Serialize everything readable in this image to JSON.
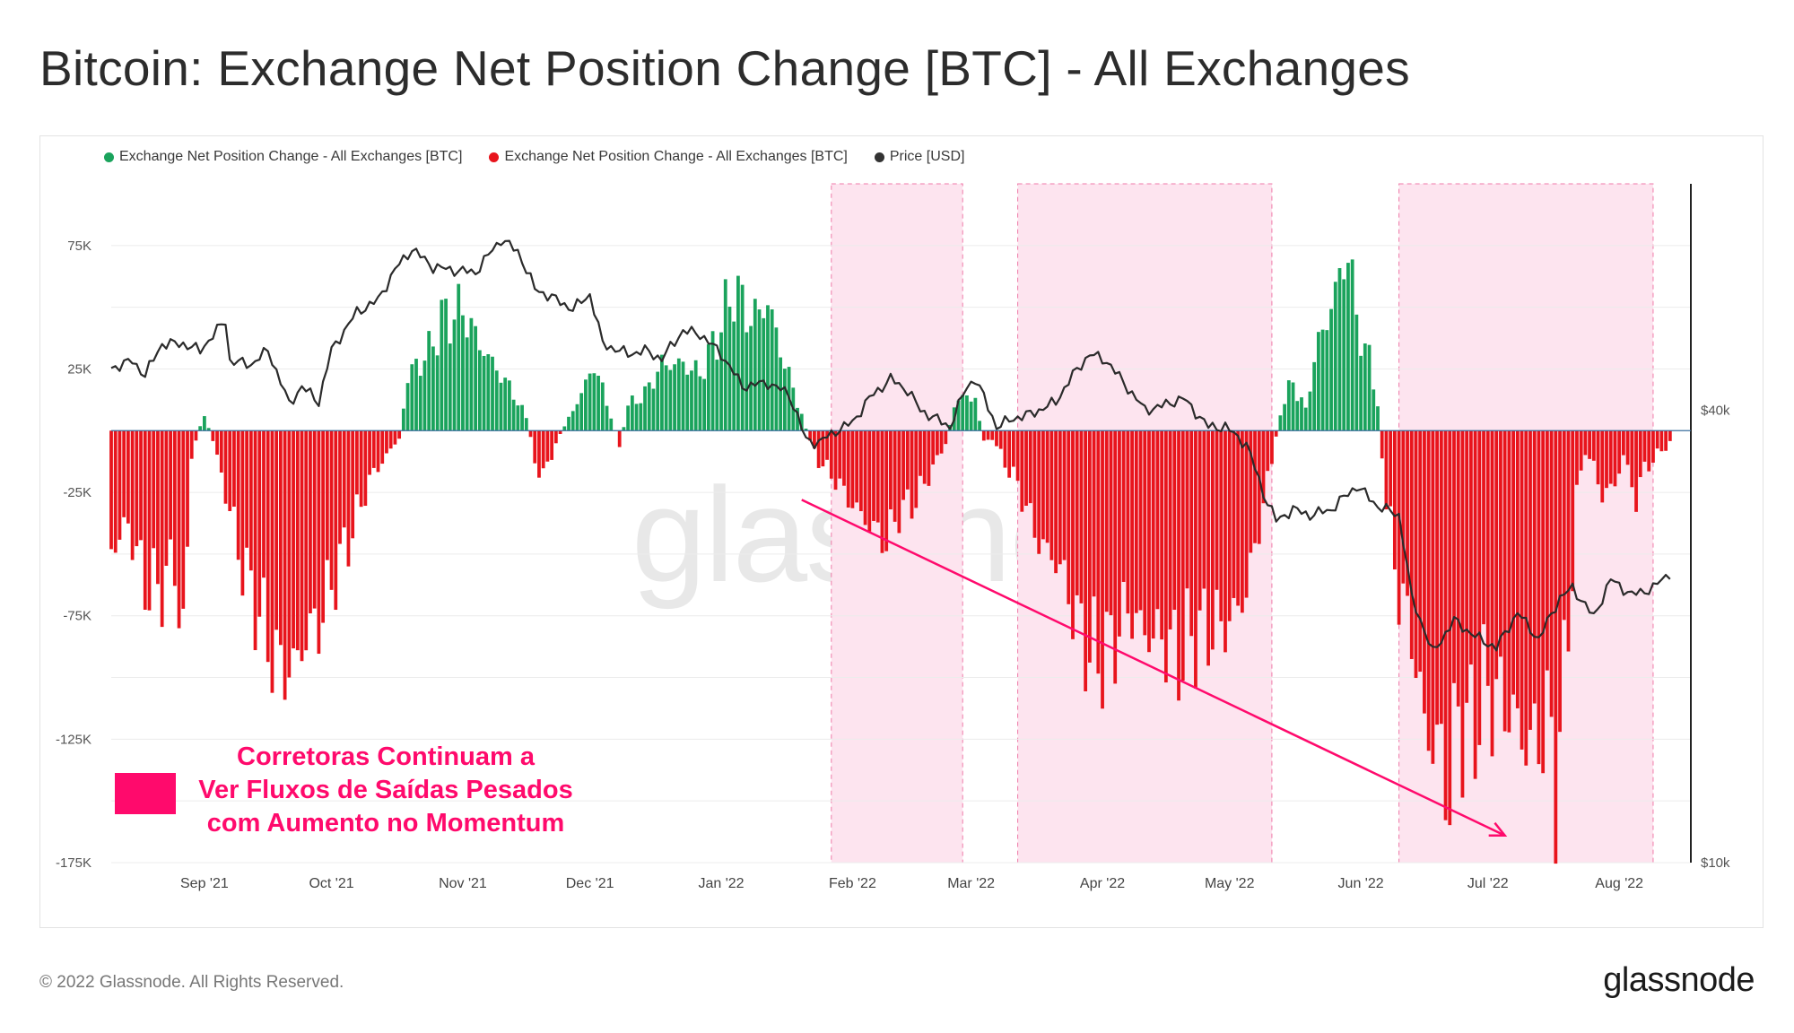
{
  "page": {
    "title": "Bitcoin: Exchange Net Position Change [BTC] - All Exchanges",
    "copyright": "© 2022 Glassnode. All Rights Reserved.",
    "logo": "glassnode",
    "watermark": "glassnode"
  },
  "annotation": {
    "lines": [
      "Corretoras Continuam a",
      "Ver Fluxos de Saídas Pesados",
      "com Aumento no Momentum"
    ],
    "color": "#ff0a6c"
  },
  "chart_data": {
    "type": "bar",
    "title": "Bitcoin: Exchange Net Position Change [BTC] - All Exchanges",
    "legend": [
      {
        "label": "Exchange Net Position Change - All Exchanges [BTC]",
        "color": "#1aa35c"
      },
      {
        "label": "Exchange Net Position Change - All Exchanges [BTC]",
        "color": "#e8141c"
      },
      {
        "label": "Price [USD]",
        "color": "#333333"
      }
    ],
    "legend_position": "top-left",
    "x_range": [
      "2021-08-10",
      "2022-08-16"
    ],
    "x_ticks": [
      {
        "date": "2021-09-01",
        "label": "Sep '21"
      },
      {
        "date": "2021-10-01",
        "label": "Oct '21"
      },
      {
        "date": "2021-11-01",
        "label": "Nov '21"
      },
      {
        "date": "2021-12-01",
        "label": "Dec '21"
      },
      {
        "date": "2022-01-01",
        "label": "Jan '22"
      },
      {
        "date": "2022-02-01",
        "label": "Feb '22"
      },
      {
        "date": "2022-03-01",
        "label": "Mar '22"
      },
      {
        "date": "2022-04-01",
        "label": "Apr '22"
      },
      {
        "date": "2022-05-01",
        "label": "May '22"
      },
      {
        "date": "2022-06-01",
        "label": "Jun '22"
      },
      {
        "date": "2022-07-01",
        "label": "Jul '22"
      },
      {
        "date": "2022-08-01",
        "label": "Aug '22"
      }
    ],
    "y_left": {
      "min": -175000,
      "max": 100000,
      "ticks": [
        {
          "value": 75000,
          "label": "75K"
        },
        {
          "value": 25000,
          "label": "25K"
        },
        {
          "value": -25000,
          "label": "-25K"
        },
        {
          "value": -75000,
          "label": "-75K"
        },
        {
          "value": -125000,
          "label": "-125K"
        },
        {
          "value": -175000,
          "label": "-175K"
        }
      ]
    },
    "y_right": {
      "scale": "log",
      "min": 10000,
      "max": 80000,
      "ticks": [
        {
          "value": 40000,
          "label": "$40k"
        },
        {
          "value": 10000,
          "label": "$10k"
        }
      ]
    },
    "grid": true,
    "shaded_periods": [
      {
        "start": "2022-01-27",
        "end": "2022-02-27"
      },
      {
        "start": "2022-03-12",
        "end": "2022-05-11"
      },
      {
        "start": "2022-06-10",
        "end": "2022-08-09"
      }
    ],
    "trend_arrow": {
      "from": {
        "date": "2022-01-20",
        "value": -28000
      },
      "to": {
        "date": "2022-07-05",
        "value": -164000
      }
    },
    "net_position_keypoints": [
      [
        "2021-08-10",
        -48000
      ],
      [
        "2021-08-14",
        -38000
      ],
      [
        "2021-08-18",
        -62000
      ],
      [
        "2021-08-21",
        -65000
      ],
      [
        "2021-08-25",
        -54000
      ],
      [
        "2021-08-27",
        -88000
      ],
      [
        "2021-08-29",
        -10000
      ],
      [
        "2021-08-31",
        2000
      ],
      [
        "2021-09-01",
        6000
      ],
      [
        "2021-09-03",
        -4000
      ],
      [
        "2021-09-06",
        -25000
      ],
      [
        "2021-09-10",
        -55000
      ],
      [
        "2021-09-14",
        -75000
      ],
      [
        "2021-09-18",
        -95000
      ],
      [
        "2021-09-22",
        -97000
      ],
      [
        "2021-09-25",
        -83000
      ],
      [
        "2021-09-28",
        -78000
      ],
      [
        "2021-10-02",
        -58000
      ],
      [
        "2021-10-06",
        -40000
      ],
      [
        "2021-10-10",
        -20000
      ],
      [
        "2021-10-14",
        -10000
      ],
      [
        "2021-10-17",
        -3000
      ],
      [
        "2021-10-19",
        22000
      ],
      [
        "2021-10-24",
        32000
      ],
      [
        "2021-10-27",
        45000
      ],
      [
        "2021-11-01",
        49000
      ],
      [
        "2021-11-05",
        35000
      ],
      [
        "2021-11-09",
        25000
      ],
      [
        "2021-11-13",
        15000
      ],
      [
        "2021-11-16",
        5000
      ],
      [
        "2021-11-18",
        -12000
      ],
      [
        "2021-11-20",
        -19000
      ],
      [
        "2021-11-23",
        -5000
      ],
      [
        "2021-11-26",
        5000
      ],
      [
        "2021-11-29",
        15000
      ],
      [
        "2021-12-02",
        27000
      ],
      [
        "2021-12-06",
        6000
      ],
      [
        "2021-12-08",
        -6000
      ],
      [
        "2021-12-10",
        10000
      ],
      [
        "2021-12-14",
        15000
      ],
      [
        "2021-12-18",
        27000
      ],
      [
        "2021-12-23",
        27000
      ],
      [
        "2021-12-27",
        23000
      ],
      [
        "2021-12-31",
        38000
      ],
      [
        "2022-01-04",
        58000
      ],
      [
        "2022-01-08",
        45000
      ],
      [
        "2022-01-12",
        52000
      ],
      [
        "2022-01-16",
        27000
      ],
      [
        "2022-01-19",
        12000
      ],
      [
        "2022-01-22",
        -5000
      ],
      [
        "2022-01-24",
        -12000
      ],
      [
        "2022-01-28",
        -20000
      ],
      [
        "2022-02-01",
        -30000
      ],
      [
        "2022-02-05",
        -38000
      ],
      [
        "2022-02-09",
        -45000
      ],
      [
        "2022-02-12",
        -33000
      ],
      [
        "2022-02-16",
        -28000
      ],
      [
        "2022-02-20",
        -15000
      ],
      [
        "2022-02-23",
        -5000
      ],
      [
        "2022-02-25",
        10000
      ],
      [
        "2022-02-28",
        15000
      ],
      [
        "2022-03-02",
        12000
      ],
      [
        "2022-03-04",
        -5000
      ],
      [
        "2022-03-06",
        -3000
      ],
      [
        "2022-03-08",
        -10000
      ],
      [
        "2022-03-12",
        -22000
      ],
      [
        "2022-03-17",
        -45000
      ],
      [
        "2022-03-22",
        -55000
      ],
      [
        "2022-03-26",
        -78000
      ],
      [
        "2022-03-30",
        -93000
      ],
      [
        "2022-04-03",
        -88000
      ],
      [
        "2022-04-07",
        -72000
      ],
      [
        "2022-04-11",
        -82000
      ],
      [
        "2022-04-15",
        -84000
      ],
      [
        "2022-04-19",
        -92000
      ],
      [
        "2022-04-23",
        -82000
      ],
      [
        "2022-04-27",
        -80000
      ],
      [
        "2022-05-01",
        -78000
      ],
      [
        "2022-05-05",
        -65000
      ],
      [
        "2022-05-09",
        -30000
      ],
      [
        "2022-05-11",
        -12000
      ],
      [
        "2022-05-13",
        8000
      ],
      [
        "2022-05-16",
        20000
      ],
      [
        "2022-05-19",
        8000
      ],
      [
        "2022-05-21",
        30000
      ],
      [
        "2022-05-24",
        45000
      ],
      [
        "2022-05-27",
        62000
      ],
      [
        "2022-05-29",
        74000
      ],
      [
        "2022-05-31",
        45000
      ],
      [
        "2022-06-03",
        28000
      ],
      [
        "2022-06-05",
        12000
      ],
      [
        "2022-06-07",
        -30000
      ],
      [
        "2022-06-10",
        -65000
      ],
      [
        "2022-06-13",
        -82000
      ],
      [
        "2022-06-16",
        -120000
      ],
      [
        "2022-06-19",
        -128000
      ],
      [
        "2022-06-22",
        -145000
      ],
      [
        "2022-06-24",
        -115000
      ],
      [
        "2022-06-27",
        -124000
      ],
      [
        "2022-06-30",
        -105000
      ],
      [
        "2022-07-03",
        -108000
      ],
      [
        "2022-07-06",
        -112000
      ],
      [
        "2022-07-09",
        -124000
      ],
      [
        "2022-07-12",
        -127000
      ],
      [
        "2022-07-15",
        -118000
      ],
      [
        "2022-07-17",
        -140000
      ],
      [
        "2022-07-19",
        -105000
      ],
      [
        "2022-07-22",
        -28000
      ],
      [
        "2022-07-24",
        -8000
      ],
      [
        "2022-07-26",
        -15000
      ],
      [
        "2022-07-28",
        -26000
      ],
      [
        "2022-07-31",
        -22000
      ],
      [
        "2022-08-02",
        -10000
      ],
      [
        "2022-08-05",
        -28000
      ],
      [
        "2022-08-07",
        -15000
      ],
      [
        "2022-08-09",
        -12000
      ],
      [
        "2022-08-11",
        -8000
      ],
      [
        "2022-08-13",
        -5000
      ]
    ],
    "price_keypoints": [
      [
        "2021-08-10",
        45500
      ],
      [
        "2021-08-15",
        46500
      ],
      [
        "2021-08-18",
        44500
      ],
      [
        "2021-08-22",
        49000
      ],
      [
        "2021-08-27",
        49000
      ],
      [
        "2021-08-31",
        48000
      ],
      [
        "2021-09-06",
        52600
      ],
      [
        "2021-09-07",
        46500
      ],
      [
        "2021-09-12",
        46000
      ],
      [
        "2021-09-16",
        48000
      ],
      [
        "2021-09-21",
        40700
      ],
      [
        "2021-09-24",
        43000
      ],
      [
        "2021-09-28",
        41000
      ],
      [
        "2021-10-01",
        48000
      ],
      [
        "2021-10-07",
        54000
      ],
      [
        "2021-10-12",
        56000
      ],
      [
        "2021-10-16",
        61500
      ],
      [
        "2021-10-20",
        65500
      ],
      [
        "2021-10-25",
        62000
      ],
      [
        "2021-10-31",
        61300
      ],
      [
        "2021-11-04",
        61000
      ],
      [
        "2021-11-10",
        67500
      ],
      [
        "2021-11-14",
        65000
      ],
      [
        "2021-11-18",
        58000
      ],
      [
        "2021-11-22",
        56500
      ],
      [
        "2021-11-27",
        54500
      ],
      [
        "2021-12-01",
        57000
      ],
      [
        "2021-12-04",
        49000
      ],
      [
        "2021-12-10",
        47500
      ],
      [
        "2021-12-14",
        48000
      ],
      [
        "2021-12-18",
        46800
      ],
      [
        "2021-12-23",
        51000
      ],
      [
        "2021-12-27",
        50500
      ],
      [
        "2022-01-01",
        47500
      ],
      [
        "2022-01-06",
        43000
      ],
      [
        "2022-01-12",
        43500
      ],
      [
        "2022-01-17",
        42000
      ],
      [
        "2022-01-21",
        36500
      ],
      [
        "2022-01-24",
        36200
      ],
      [
        "2022-01-28",
        37500
      ],
      [
        "2022-02-01",
        38500
      ],
      [
        "2022-02-05",
        41500
      ],
      [
        "2022-02-10",
        44000
      ],
      [
        "2022-02-14",
        42500
      ],
      [
        "2022-02-17",
        40000
      ],
      [
        "2022-02-24",
        38000
      ],
      [
        "2022-02-28",
        43000
      ],
      [
        "2022-03-02",
        44000
      ],
      [
        "2022-03-07",
        38000
      ],
      [
        "2022-03-11",
        39000
      ],
      [
        "2022-03-15",
        39500
      ],
      [
        "2022-03-21",
        41000
      ],
      [
        "2022-03-25",
        44500
      ],
      [
        "2022-03-29",
        47500
      ],
      [
        "2022-04-02",
        46500
      ],
      [
        "2022-04-06",
        43500
      ],
      [
        "2022-04-11",
        40000
      ],
      [
        "2022-04-15",
        40500
      ],
      [
        "2022-04-20",
        41500
      ],
      [
        "2022-04-26",
        38000
      ],
      [
        "2022-04-30",
        38000
      ],
      [
        "2022-05-05",
        36000
      ],
      [
        "2022-05-09",
        31000
      ],
      [
        "2022-05-12",
        28500
      ],
      [
        "2022-05-16",
        29500
      ],
      [
        "2022-05-20",
        29000
      ],
      [
        "2022-05-25",
        29500
      ],
      [
        "2022-05-31",
        31700
      ],
      [
        "2022-06-05",
        29800
      ],
      [
        "2022-06-10",
        29000
      ],
      [
        "2022-06-13",
        22500
      ],
      [
        "2022-06-18",
        19000
      ],
      [
        "2022-06-23",
        21000
      ],
      [
        "2022-06-28",
        20000
      ],
      [
        "2022-07-03",
        19300
      ],
      [
        "2022-07-08",
        21500
      ],
      [
        "2022-07-13",
        19800
      ],
      [
        "2022-07-18",
        22500
      ],
      [
        "2022-07-21",
        23200
      ],
      [
        "2022-07-26",
        21200
      ],
      [
        "2022-07-30",
        23800
      ],
      [
        "2022-08-04",
        22700
      ],
      [
        "2022-08-09",
        23200
      ],
      [
        "2022-08-13",
        24300
      ]
    ]
  }
}
